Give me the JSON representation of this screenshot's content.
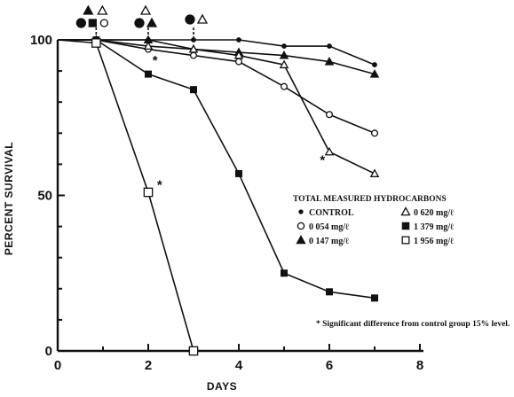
{
  "chart_data": {
    "type": "line",
    "title": "",
    "xlabel": "DAYS",
    "ylabel": "PERCENT SURVIVAL",
    "xlim": [
      0,
      8
    ],
    "ylim": [
      0,
      100
    ],
    "x_ticks": [
      "0",
      "2",
      "4",
      "6",
      "8"
    ],
    "y_ticks": [
      "0",
      "50",
      "100"
    ],
    "grid": false,
    "legend": {
      "title": "TOTAL MEASURED HYDROCARBONS",
      "placement": "right",
      "entries": [
        {
          "symbol": "dot",
          "label": "CONTROL"
        },
        {
          "symbol": "open-triangle",
          "label": "0 620 mg/ℓ"
        },
        {
          "symbol": "open-circle",
          "label": "0 054 mg/ℓ"
        },
        {
          "symbol": "filled-square",
          "label": "1 379 mg/ℓ"
        },
        {
          "symbol": "filled-triangle",
          "label": "0 147 mg/ℓ"
        },
        {
          "symbol": "open-square",
          "label": "1 956 mg/ℓ"
        }
      ]
    },
    "series": [
      {
        "symbol": "dot",
        "x": [
          0,
          0.85,
          2,
          3,
          4,
          5,
          6,
          7
        ],
        "y": [
          100,
          100,
          100,
          100,
          100,
          98,
          98,
          92
        ]
      },
      {
        "symbol": "open-circle",
        "x": [
          0,
          0.85,
          2,
          3,
          4,
          5,
          6,
          7
        ],
        "y": [
          100,
          100,
          97,
          95,
          93,
          85,
          76,
          70
        ]
      },
      {
        "symbol": "filled-triangle",
        "x": [
          0,
          0.85,
          2,
          3,
          4,
          5,
          6,
          7
        ],
        "y": [
          100,
          100,
          100,
          97,
          96,
          95,
          93,
          89
        ]
      },
      {
        "symbol": "open-triangle",
        "x": [
          0,
          0.85,
          2,
          3,
          4,
          5,
          6,
          7
        ],
        "y": [
          100,
          100,
          98,
          97,
          95,
          92,
          64,
          57
        ]
      },
      {
        "symbol": "filled-square",
        "x": [
          0,
          0.85,
          2,
          3,
          4,
          5,
          6,
          7
        ],
        "y": [
          100,
          100,
          89,
          84,
          57,
          25,
          19,
          17
        ]
      },
      {
        "symbol": "open-square",
        "x": [
          0,
          0.85,
          2,
          3
        ],
        "y": [
          100,
          99,
          51,
          0
        ]
      }
    ],
    "significance_marks": [
      {
        "x": 2.15,
        "y": 92
      },
      {
        "x": 2.25,
        "y": 52
      },
      {
        "x": 5.85,
        "y": 60
      }
    ],
    "top_markers": [
      {
        "x": 0.85,
        "symbols": [
          "filled-triangle",
          "open-triangle",
          "filled-circle",
          "filled-square",
          "open-circle"
        ]
      },
      {
        "x": 2,
        "symbols": [
          "open-triangle",
          "filled-circle",
          "filled-triangle"
        ]
      },
      {
        "x": 3,
        "symbols": [
          "filled-circle",
          "open-triangle"
        ]
      }
    ],
    "footnote": "* Significant difference from control group 15% level."
  },
  "colors": {
    "ink": "#111111",
    "background": "#ffffff"
  }
}
